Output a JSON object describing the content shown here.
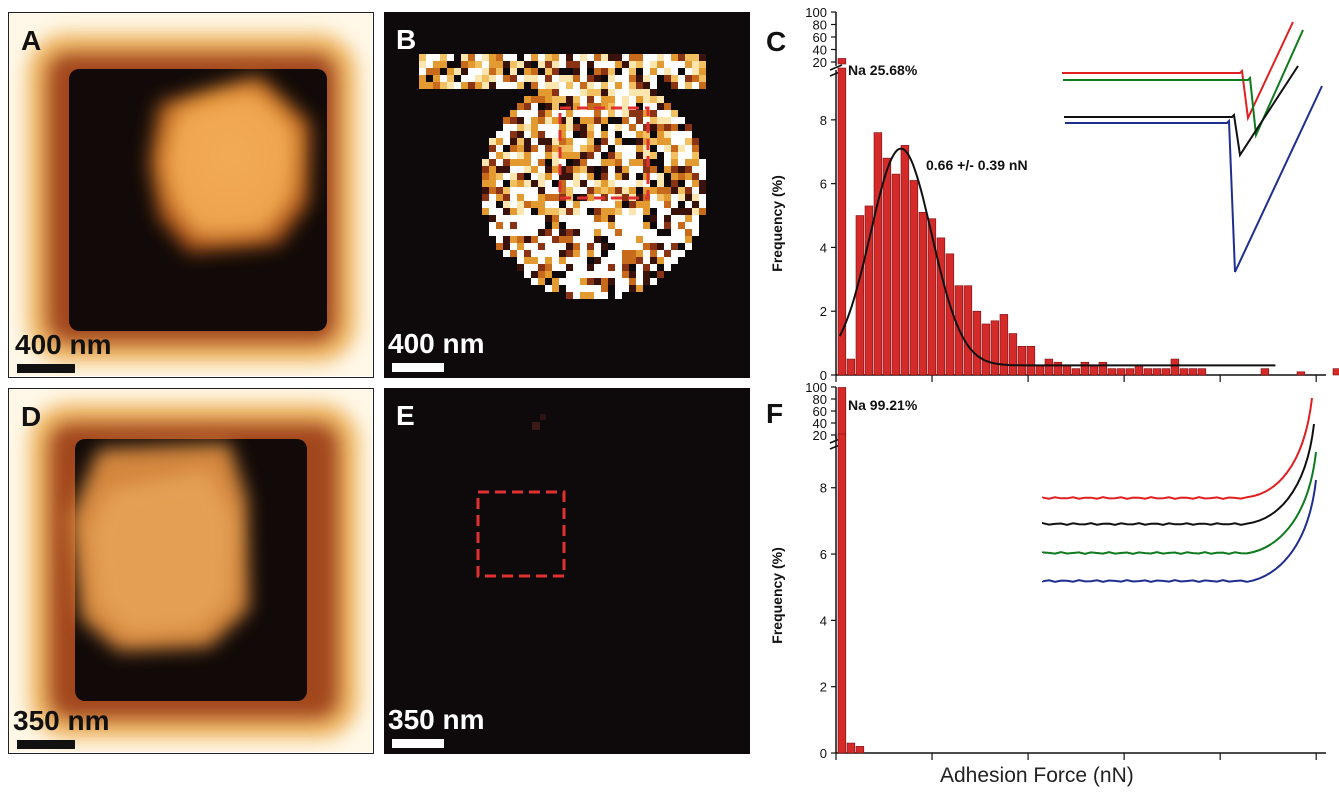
{
  "panels": {
    "A": {
      "letter": "A",
      "scale": "400 nm"
    },
    "B": {
      "letter": "B",
      "scale": "400 nm"
    },
    "C": {
      "letter": "C",
      "na_label": "Na 25.68%",
      "fit_label": "0.66 +/- 0.39 nN"
    },
    "D": {
      "letter": "D",
      "scale": "350 nm"
    },
    "E": {
      "letter": "E",
      "scale": "350 nm"
    },
    "F": {
      "letter": "F",
      "na_label": "Na 99.21%"
    }
  },
  "shared_xlabel": "Adhesion Force (nN)",
  "colors": {
    "bar": "#d42a2a",
    "curve_red": "#e02020",
    "curve_green": "#0f7a1e",
    "curve_black": "#111111",
    "curve_blue": "#1f2f8f",
    "dashed_box": "#e03030"
  },
  "chart_data": [
    {
      "type": "bar",
      "panel": "C",
      "ylabel": "Frequency (%)",
      "xlabel": "Adhesion Force (nN)",
      "y_ticks_lower": [
        "0",
        "2",
        "4",
        "6",
        "8"
      ],
      "y_ticks_upper": [
        "20",
        "40",
        "60",
        "80",
        "100"
      ],
      "ylim": [
        0,
        100
      ],
      "axis_break": true,
      "values": [
        25.68,
        0.5,
        5.0,
        5.3,
        7.6,
        6.8,
        6.3,
        7.2,
        6.1,
        5.1,
        4.9,
        4.3,
        3.8,
        2.8,
        2.8,
        2.0,
        1.6,
        1.7,
        1.9,
        1.3,
        0.9,
        0.9,
        0.3,
        0.5,
        0.4,
        0.3,
        0.2,
        0.4,
        0.3,
        0.4,
        0.2,
        0.2,
        0.2,
        0.3,
        0.2,
        0.2,
        0.2,
        0.5,
        0.2,
        0.2,
        0.2,
        0.0,
        0.0,
        0.0,
        0.0,
        0.0,
        0.0,
        0.2,
        0.0,
        0.0,
        0.0,
        0.1,
        0.0,
        0.0,
        0.0,
        0.2,
        0.0,
        0.0,
        0.3
      ],
      "fit": {
        "mean": 0.66,
        "sd": 0.39,
        "peak": 6.8
      }
    },
    {
      "type": "bar",
      "panel": "F",
      "ylabel": "Frequency (%)",
      "xlabel": "Adhesion Force (nN)",
      "y_ticks_lower": [
        "0",
        "2",
        "4",
        "6",
        "8"
      ],
      "y_ticks_upper": [
        "20",
        "40",
        "60",
        "80",
        "100"
      ],
      "ylim": [
        0,
        100
      ],
      "axis_break": true,
      "values": [
        99.21,
        0.3,
        0.2
      ]
    }
  ]
}
